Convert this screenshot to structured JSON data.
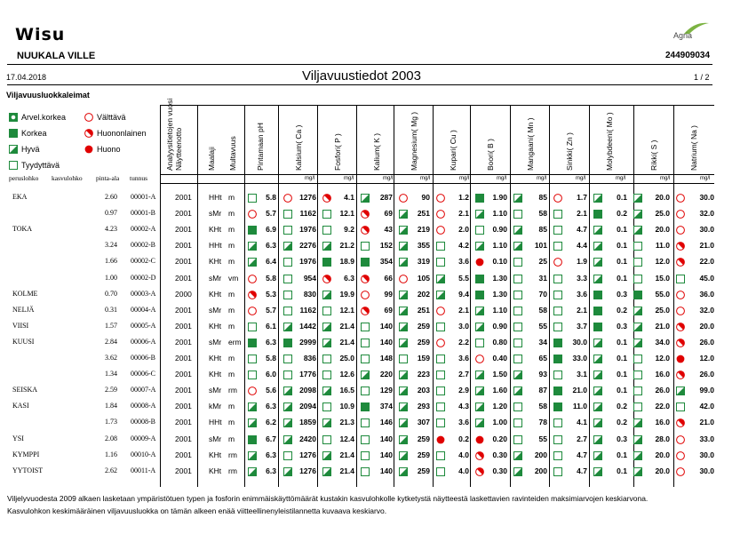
{
  "header": {
    "logo": "Wisu",
    "brand": "Agria",
    "farm_name": "NUUKALA VILLE",
    "farm_id": "244909034",
    "date": "17.04.2018",
    "title": "Viljavuustiedot  2003",
    "page": "1  /  2"
  },
  "legend": {
    "title": "Viljavuusluokkaleimat",
    "items": [
      {
        "sym": "cb",
        "label": "Arvel.korkea"
      },
      {
        "sym": "fs",
        "label": "Korkea"
      },
      {
        "sym": "hs",
        "label": "Hyvä"
      },
      {
        "sym": "es",
        "label": "Tyydyttävä"
      },
      {
        "sym": "ec",
        "label": "Välttävä"
      },
      {
        "sym": "hc",
        "label": "Huononlainen"
      },
      {
        "sym": "fc",
        "label": "Huono"
      }
    ]
  },
  "columns": {
    "id_labels": [
      "peruslohko",
      "kasvulohko",
      "pinta-ala",
      "tunnus"
    ],
    "year_header": "Analyysitietojen vuosi",
    "year_header2": "Näytteenotto",
    "soil_header": "Maalaji",
    "mull_header": "Multavuus",
    "ph_header": "Pintamaan pH",
    "unit": "mg/l",
    "nutrients": [
      "Kalsium( Ca )",
      "Fosfori( P )",
      "Kalium( K )",
      "Magnesium( Mg )",
      "Kupari( Cu )",
      "Boori( B )",
      "Mangaani( Mn )",
      "Sinkki( Zn )",
      "Molybdeeni( Mo )",
      "Rikki( S )",
      "Natrium( Na )"
    ]
  },
  "rows": [
    {
      "name": "EKA",
      "area": "2.60",
      "id": "00001-A",
      "year": "2001",
      "soil": "HHt",
      "mull": "m",
      "ph": [
        "es",
        "5.8"
      ],
      "v": [
        [
          "ec",
          "1276"
        ],
        [
          "hc",
          "4.1"
        ],
        [
          "hs",
          "287"
        ],
        [
          "ec",
          "90"
        ],
        [
          "ec",
          "1.2"
        ],
        [
          "fs",
          "1.90"
        ],
        [
          "hs",
          "85"
        ],
        [
          "ec",
          "1.7"
        ],
        [
          "hs",
          "0.1"
        ],
        [
          "hs",
          "20.0"
        ],
        [
          "ec",
          "30.0"
        ]
      ]
    },
    {
      "name": "",
      "area": "0.97",
      "id": "00001-B",
      "year": "2001",
      "soil": "sMr",
      "mull": "m",
      "ph": [
        "ec",
        "5.7"
      ],
      "v": [
        [
          "es",
          "1162"
        ],
        [
          "es",
          "12.1"
        ],
        [
          "hc",
          "69"
        ],
        [
          "hs",
          "251"
        ],
        [
          "ec",
          "2.1"
        ],
        [
          "hs",
          "1.10"
        ],
        [
          "es",
          "58"
        ],
        [
          "es",
          "2.1"
        ],
        [
          "fs",
          "0.2"
        ],
        [
          "hs",
          "25.0"
        ],
        [
          "ec",
          "32.0"
        ]
      ]
    },
    {
      "name": "TOKA",
      "area": "4.23",
      "id": "00002-A",
      "year": "2001",
      "soil": "KHt",
      "mull": "m",
      "ph": [
        "fs",
        "6.9"
      ],
      "v": [
        [
          "es",
          "1976"
        ],
        [
          "es",
          "9.2"
        ],
        [
          "hc",
          "43"
        ],
        [
          "hs",
          "219"
        ],
        [
          "ec",
          "2.0"
        ],
        [
          "es",
          "0.90"
        ],
        [
          "hs",
          "85"
        ],
        [
          "es",
          "4.7"
        ],
        [
          "hs",
          "0.1"
        ],
        [
          "hs",
          "20.0"
        ],
        [
          "ec",
          "30.0"
        ]
      ]
    },
    {
      "name": "",
      "area": "3.24",
      "id": "00002-B",
      "year": "2001",
      "soil": "HHt",
      "mull": "m",
      "ph": [
        "hs",
        "6.3"
      ],
      "v": [
        [
          "hs",
          "2276"
        ],
        [
          "hs",
          "21.2"
        ],
        [
          "es",
          "152"
        ],
        [
          "hs",
          "355"
        ],
        [
          "es",
          "4.2"
        ],
        [
          "hs",
          "1.10"
        ],
        [
          "hs",
          "101"
        ],
        [
          "es",
          "4.4"
        ],
        [
          "hs",
          "0.1"
        ],
        [
          "es",
          "11.0"
        ],
        [
          "hc",
          "21.0"
        ]
      ]
    },
    {
      "name": "",
      "area": "1.66",
      "id": "00002-C",
      "year": "2001",
      "soil": "KHt",
      "mull": "m",
      "ph": [
        "hs",
        "6.4"
      ],
      "v": [
        [
          "es",
          "1976"
        ],
        [
          "fs",
          "18.9"
        ],
        [
          "fs",
          "354"
        ],
        [
          "hs",
          "319"
        ],
        [
          "es",
          "3.6"
        ],
        [
          "fc",
          "0.10"
        ],
        [
          "es",
          "25"
        ],
        [
          "ec",
          "1.9"
        ],
        [
          "hs",
          "0.1"
        ],
        [
          "es",
          "12.0"
        ],
        [
          "hc",
          "22.0"
        ]
      ]
    },
    {
      "name": "",
      "area": "1.00",
      "id": "00002-D",
      "year": "2001",
      "soil": "sMr",
      "mull": "vm",
      "ph": [
        "ec",
        "5.8"
      ],
      "v": [
        [
          "es",
          "954"
        ],
        [
          "hc",
          "6.3"
        ],
        [
          "hc",
          "66"
        ],
        [
          "ec",
          "105"
        ],
        [
          "hs",
          "5.5"
        ],
        [
          "fs",
          "1.30"
        ],
        [
          "es",
          "31"
        ],
        [
          "es",
          "3.3"
        ],
        [
          "hs",
          "0.1"
        ],
        [
          "es",
          "15.0"
        ],
        [
          "es",
          "45.0"
        ]
      ]
    },
    {
      "name": "KOLME",
      "area": "0.70",
      "id": "00003-A",
      "year": "2000",
      "soil": "KHt",
      "mull": "m",
      "ph": [
        "hc",
        "5.3"
      ],
      "v": [
        [
          "es",
          "830"
        ],
        [
          "hs",
          "19.9"
        ],
        [
          "ec",
          "99"
        ],
        [
          "hs",
          "202"
        ],
        [
          "hs",
          "9.4"
        ],
        [
          "fs",
          "1.30"
        ],
        [
          "es",
          "70"
        ],
        [
          "es",
          "3.6"
        ],
        [
          "fs",
          "0.3"
        ],
        [
          "fs",
          "55.0"
        ],
        [
          "ec",
          "36.0"
        ]
      ]
    },
    {
      "name": "NELJÄ",
      "area": "0.31",
      "id": "00004-A",
      "year": "2001",
      "soil": "sMr",
      "mull": "m",
      "ph": [
        "ec",
        "5.7"
      ],
      "v": [
        [
          "es",
          "1162"
        ],
        [
          "es",
          "12.1"
        ],
        [
          "hc",
          "69"
        ],
        [
          "hs",
          "251"
        ],
        [
          "ec",
          "2.1"
        ],
        [
          "hs",
          "1.10"
        ],
        [
          "es",
          "58"
        ],
        [
          "es",
          "2.1"
        ],
        [
          "fs",
          "0.2"
        ],
        [
          "hs",
          "25.0"
        ],
        [
          "ec",
          "32.0"
        ]
      ]
    },
    {
      "name": "VIISI",
      "area": "1.57",
      "id": "00005-A",
      "year": "2001",
      "soil": "KHt",
      "mull": "m",
      "ph": [
        "es",
        "6.1"
      ],
      "v": [
        [
          "hs",
          "1442"
        ],
        [
          "hs",
          "21.4"
        ],
        [
          "es",
          "140"
        ],
        [
          "hs",
          "259"
        ],
        [
          "es",
          "3.0"
        ],
        [
          "hs",
          "0.90"
        ],
        [
          "es",
          "55"
        ],
        [
          "es",
          "3.7"
        ],
        [
          "fs",
          "0.3"
        ],
        [
          "hs",
          "21.0"
        ],
        [
          "hc",
          "20.0"
        ]
      ]
    },
    {
      "name": "KUUSI",
      "area": "2.84",
      "id": "00006-A",
      "year": "2001",
      "soil": "sMr",
      "mull": "erm",
      "ph": [
        "fs",
        "6.3"
      ],
      "v": [
        [
          "fs",
          "2999"
        ],
        [
          "hs",
          "21.4"
        ],
        [
          "es",
          "140"
        ],
        [
          "hs",
          "259"
        ],
        [
          "ec",
          "2.2"
        ],
        [
          "es",
          "0.80"
        ],
        [
          "es",
          "34"
        ],
        [
          "fs",
          "30.0"
        ],
        [
          "hs",
          "0.1"
        ],
        [
          "hs",
          "34.0"
        ],
        [
          "hc",
          "26.0"
        ]
      ]
    },
    {
      "name": "",
      "area": "3.62",
      "id": "00006-B",
      "year": "2001",
      "soil": "KHt",
      "mull": "m",
      "ph": [
        "es",
        "5.8"
      ],
      "v": [
        [
          "es",
          "836"
        ],
        [
          "es",
          "25.0"
        ],
        [
          "es",
          "148"
        ],
        [
          "es",
          "159"
        ],
        [
          "es",
          "3.6"
        ],
        [
          "ec",
          "0.40"
        ],
        [
          "es",
          "65"
        ],
        [
          "fs",
          "33.0"
        ],
        [
          "hs",
          "0.1"
        ],
        [
          "es",
          "12.0"
        ],
        [
          "fc",
          "12.0"
        ]
      ]
    },
    {
      "name": "",
      "area": "1.34",
      "id": "00006-C",
      "year": "2001",
      "soil": "KHt",
      "mull": "m",
      "ph": [
        "es",
        "6.0"
      ],
      "v": [
        [
          "es",
          "1776"
        ],
        [
          "es",
          "12.6"
        ],
        [
          "hs",
          "220"
        ],
        [
          "hs",
          "223"
        ],
        [
          "es",
          "2.7"
        ],
        [
          "hs",
          "1.50"
        ],
        [
          "hs",
          "93"
        ],
        [
          "es",
          "3.1"
        ],
        [
          "hs",
          "0.1"
        ],
        [
          "es",
          "16.0"
        ],
        [
          "hc",
          "26.0"
        ]
      ]
    },
    {
      "name": "SEISKA",
      "area": "2.59",
      "id": "00007-A",
      "year": "2001",
      "soil": "sMr",
      "mull": "rm",
      "ph": [
        "ec",
        "5.6"
      ],
      "v": [
        [
          "hs",
          "2098"
        ],
        [
          "hs",
          "16.5"
        ],
        [
          "es",
          "129"
        ],
        [
          "hs",
          "203"
        ],
        [
          "es",
          "2.9"
        ],
        [
          "hs",
          "1.60"
        ],
        [
          "hs",
          "87"
        ],
        [
          "fs",
          "21.0"
        ],
        [
          "hs",
          "0.1"
        ],
        [
          "es",
          "26.0"
        ],
        [
          "hs",
          "99.0"
        ]
      ]
    },
    {
      "name": "KASI",
      "area": "1.84",
      "id": "00008-A",
      "year": "2001",
      "soil": "kMr",
      "mull": "m",
      "ph": [
        "hs",
        "6.3"
      ],
      "v": [
        [
          "hs",
          "2094"
        ],
        [
          "es",
          "10.9"
        ],
        [
          "fs",
          "374"
        ],
        [
          "hs",
          "293"
        ],
        [
          "es",
          "4.3"
        ],
        [
          "hs",
          "1.20"
        ],
        [
          "es",
          "58"
        ],
        [
          "fs",
          "11.0"
        ],
        [
          "hs",
          "0.2"
        ],
        [
          "es",
          "22.0"
        ],
        [
          "es",
          "42.0"
        ]
      ]
    },
    {
      "name": "",
      "area": "1.73",
      "id": "00008-B",
      "year": "2001",
      "soil": "HHt",
      "mull": "m",
      "ph": [
        "hs",
        "6.2"
      ],
      "v": [
        [
          "hs",
          "1859"
        ],
        [
          "hs",
          "21.3"
        ],
        [
          "es",
          "146"
        ],
        [
          "hs",
          "307"
        ],
        [
          "es",
          "3.6"
        ],
        [
          "hs",
          "1.00"
        ],
        [
          "es",
          "78"
        ],
        [
          "es",
          "4.1"
        ],
        [
          "hs",
          "0.2"
        ],
        [
          "hs",
          "16.0"
        ],
        [
          "hc",
          "21.0"
        ]
      ]
    },
    {
      "name": "YSI",
      "area": "2.08",
      "id": "00009-A",
      "year": "2001",
      "soil": "sMr",
      "mull": "m",
      "ph": [
        "fs",
        "6.7"
      ],
      "v": [
        [
          "hs",
          "2420"
        ],
        [
          "es",
          "12.4"
        ],
        [
          "es",
          "140"
        ],
        [
          "hs",
          "259"
        ],
        [
          "fc",
          "0.2"
        ],
        [
          "fc",
          "0.20"
        ],
        [
          "es",
          "55"
        ],
        [
          "es",
          "2.7"
        ],
        [
          "hs",
          "0.3"
        ],
        [
          "hs",
          "28.0"
        ],
        [
          "ec",
          "33.0"
        ]
      ]
    },
    {
      "name": "KYMPPI",
      "area": "1.16",
      "id": "00010-A",
      "year": "2001",
      "soil": "KHt",
      "mull": "rm",
      "ph": [
        "hs",
        "6.3"
      ],
      "v": [
        [
          "es",
          "1276"
        ],
        [
          "hs",
          "21.4"
        ],
        [
          "es",
          "140"
        ],
        [
          "hs",
          "259"
        ],
        [
          "es",
          "4.0"
        ],
        [
          "hc",
          "0.30"
        ],
        [
          "hs",
          "200"
        ],
        [
          "es",
          "4.7"
        ],
        [
          "hs",
          "0.1"
        ],
        [
          "hs",
          "20.0"
        ],
        [
          "ec",
          "30.0"
        ]
      ]
    },
    {
      "name": "YYTOIST",
      "area": "2.62",
      "id": "00011-A",
      "year": "2001",
      "soil": "KHt",
      "mull": "rm",
      "ph": [
        "hs",
        "6.3"
      ],
      "v": [
        [
          "hs",
          "1276"
        ],
        [
          "hs",
          "21.4"
        ],
        [
          "es",
          "140"
        ],
        [
          "hs",
          "259"
        ],
        [
          "es",
          "4.0"
        ],
        [
          "hc",
          "0.30"
        ],
        [
          "hs",
          "200"
        ],
        [
          "es",
          "4.7"
        ],
        [
          "hs",
          "0.1"
        ],
        [
          "hs",
          "20.0"
        ],
        [
          "ec",
          "30.0"
        ]
      ]
    }
  ],
  "footer": {
    "line1": "Viljelyvuodesta 2009 alkaen lasketaan ympäristötuen typen ja fosforin enimmäiskäyttömäärät kustakin kasvulohkolle kytketystä näytteestä laskettavien ravinteiden maksimiarvojen keskiarvona.",
    "line2": "Kasvulohkon keskimääräinen viljavuusluokka on tämän alkeen enää viitteellinenyleistilannetta kuvaava keskiarvo."
  }
}
